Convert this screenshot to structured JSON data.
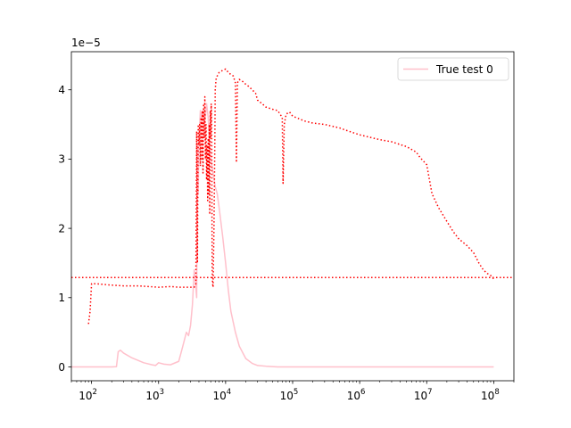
{
  "chart_data": {
    "type": "line",
    "title": "",
    "xlabel": "",
    "ylabel": "",
    "x_scale": "log",
    "xlim": [
      50,
      200000000
    ],
    "ylim": [
      -2e-06,
      4.55e-05
    ],
    "y_offset_text": "1e−5",
    "x_ticks": [
      {
        "value": 100,
        "base": "10",
        "exp": "2"
      },
      {
        "value": 1000,
        "base": "10",
        "exp": "3"
      },
      {
        "value": 10000,
        "base": "10",
        "exp": "4"
      },
      {
        "value": 100000,
        "base": "10",
        "exp": "5"
      },
      {
        "value": 1000000,
        "base": "10",
        "exp": "6"
      },
      {
        "value": 10000000,
        "base": "10",
        "exp": "7"
      },
      {
        "value": 100000000,
        "base": "10",
        "exp": "8"
      }
    ],
    "y_ticks": [
      {
        "value": 0,
        "label": "0"
      },
      {
        "value": 1e-05,
        "label": "1"
      },
      {
        "value": 2e-05,
        "label": "2"
      },
      {
        "value": 3e-05,
        "label": "3"
      },
      {
        "value": 4e-05,
        "label": "4"
      }
    ],
    "grid": false,
    "legend": {
      "position": "top-right",
      "entries": [
        "True test 0"
      ]
    },
    "colors": {
      "true_series": "#ffc0cb",
      "pred_series": "#ff0000"
    },
    "series": [
      {
        "name": "True test 0",
        "style": "solid",
        "color": "#ffc0cb",
        "x": [
          50,
          200,
          235,
          250,
          270,
          300,
          400,
          600,
          800,
          900,
          1000,
          1200,
          1500,
          2000,
          2300,
          2600,
          2800,
          3000,
          3200,
          3400,
          3500,
          3700,
          3800,
          3900,
          4000,
          4200,
          4400,
          4600,
          4800,
          5000,
          5200,
          5500,
          5800,
          6000,
          6500,
          7000,
          7500,
          8000,
          9000,
          10000,
          11000,
          12000,
          14000,
          16000,
          20000,
          25000,
          30000,
          40000,
          60000,
          100000,
          1000000,
          10000000,
          100000000
        ],
        "y": [
          0.0,
          0.0,
          2e-08,
          2.2e-06,
          2.4e-06,
          2e-06,
          1.3e-06,
          6e-07,
          3e-07,
          2e-07,
          6e-07,
          4e-07,
          3e-07,
          8e-07,
          3e-06,
          5e-06,
          4.5e-06,
          6e-06,
          9e-06,
          1.4e-05,
          1.3e-05,
          1e-05,
          3.2e-05,
          2.5e-05,
          3.3e-05,
          3.7e-05,
          3.6e-05,
          3.7e-05,
          3.5e-05,
          3.6e-05,
          3.8e-05,
          3.6e-05,
          3.2e-05,
          3e-05,
          2.8e-05,
          2.6e-05,
          2.5e-05,
          2.3e-05,
          1.9e-05,
          1.5e-05,
          1.1e-05,
          8e-06,
          5e-06,
          3e-06,
          1.2e-06,
          5e-07,
          2e-07,
          1e-07,
          0.0,
          0.0,
          0.0,
          0.0,
          0.0
        ]
      },
      {
        "name": "",
        "style": "dotted",
        "color": "#ff0000",
        "x": [
          90,
          95,
          100,
          120,
          200,
          300,
          500,
          700,
          1000,
          1500,
          2000,
          2500,
          3000,
          3400,
          3600,
          3700,
          3800,
          3900,
          4000,
          4100,
          4200,
          4300,
          4400,
          4500,
          4600,
          4700,
          4800,
          4900,
          5000,
          5100,
          5200,
          5300,
          5400,
          5500,
          5600,
          5700,
          5800,
          5900,
          6000,
          6100,
          6200,
          6300,
          6400,
          6500,
          6700,
          6900,
          7000,
          7200,
          7500,
          8000,
          9000,
          10000,
          11000,
          12000,
          13000,
          14000,
          14500,
          15000,
          16000,
          18000,
          20000,
          22000,
          25000,
          28000,
          30000,
          35000,
          40000,
          50000,
          60000,
          70000,
          72000,
          75000,
          80000,
          90000,
          100000,
          150000,
          200000,
          300000,
          500000,
          700000,
          1000000,
          2000000,
          3000000,
          5000000,
          7000000,
          8000000,
          10000000,
          12000000,
          15000000,
          20000000,
          25000000,
          30000000,
          40000000,
          50000000,
          60000000,
          70000000,
          80000000,
          90000000,
          100000000
        ],
        "y": [
          6.2e-06,
          8e-06,
          1.2e-05,
          1.2e-05,
          1.18e-05,
          1.17e-05,
          1.17e-05,
          1.16e-05,
          1.15e-05,
          1.16e-05,
          1.15e-05,
          1.15e-05,
          1.15e-05,
          1.15e-05,
          1.2e-05,
          3.4e-05,
          1.5e-05,
          3.5e-05,
          3.2e-05,
          3.5e-05,
          2.9e-05,
          3.6e-05,
          3e-05,
          3.7e-05,
          2.8e-05,
          3.8e-05,
          3.3e-05,
          3.9e-05,
          3e-05,
          3.5e-05,
          2.7e-05,
          3.2e-05,
          2.4e-05,
          3.3e-05,
          2.5e-05,
          3.5e-05,
          2.2e-05,
          3.7e-05,
          3.3e-05,
          3.8e-05,
          3.5e-05,
          1.4e-05,
          1.2e-05,
          1.15e-05,
          2e-05,
          3.2e-05,
          4e-05,
          4.15e-05,
          4.2e-05,
          4.25e-05,
          4.28e-05,
          4.3e-05,
          4.25e-05,
          4.22e-05,
          4.2e-05,
          4.1e-05,
          2.95e-05,
          4.1e-05,
          4.15e-05,
          4.12e-05,
          4.08e-05,
          4.05e-05,
          4e-05,
          3.95e-05,
          3.85e-05,
          3.8e-05,
          3.75e-05,
          3.72e-05,
          3.7e-05,
          3.6e-05,
          2.65e-05,
          3.5e-05,
          3.65e-05,
          3.68e-05,
          3.62e-05,
          3.55e-05,
          3.52e-05,
          3.5e-05,
          3.45e-05,
          3.4e-05,
          3.35e-05,
          3.28e-05,
          3.25e-05,
          3.18e-05,
          3.1e-05,
          3.02e-05,
          2.92e-05,
          2.5e-05,
          2.3e-05,
          2.1e-05,
          1.95e-05,
          1.85e-05,
          1.75e-05,
          1.65e-05,
          1.5e-05,
          1.4e-05,
          1.35e-05,
          1.32e-05,
          1.27e-05
        ]
      },
      {
        "name": "",
        "style": "dotted",
        "color": "#ff0000",
        "x": [
          50,
          200000000
        ],
        "y": [
          1.29e-05,
          1.29e-05
        ]
      }
    ]
  }
}
